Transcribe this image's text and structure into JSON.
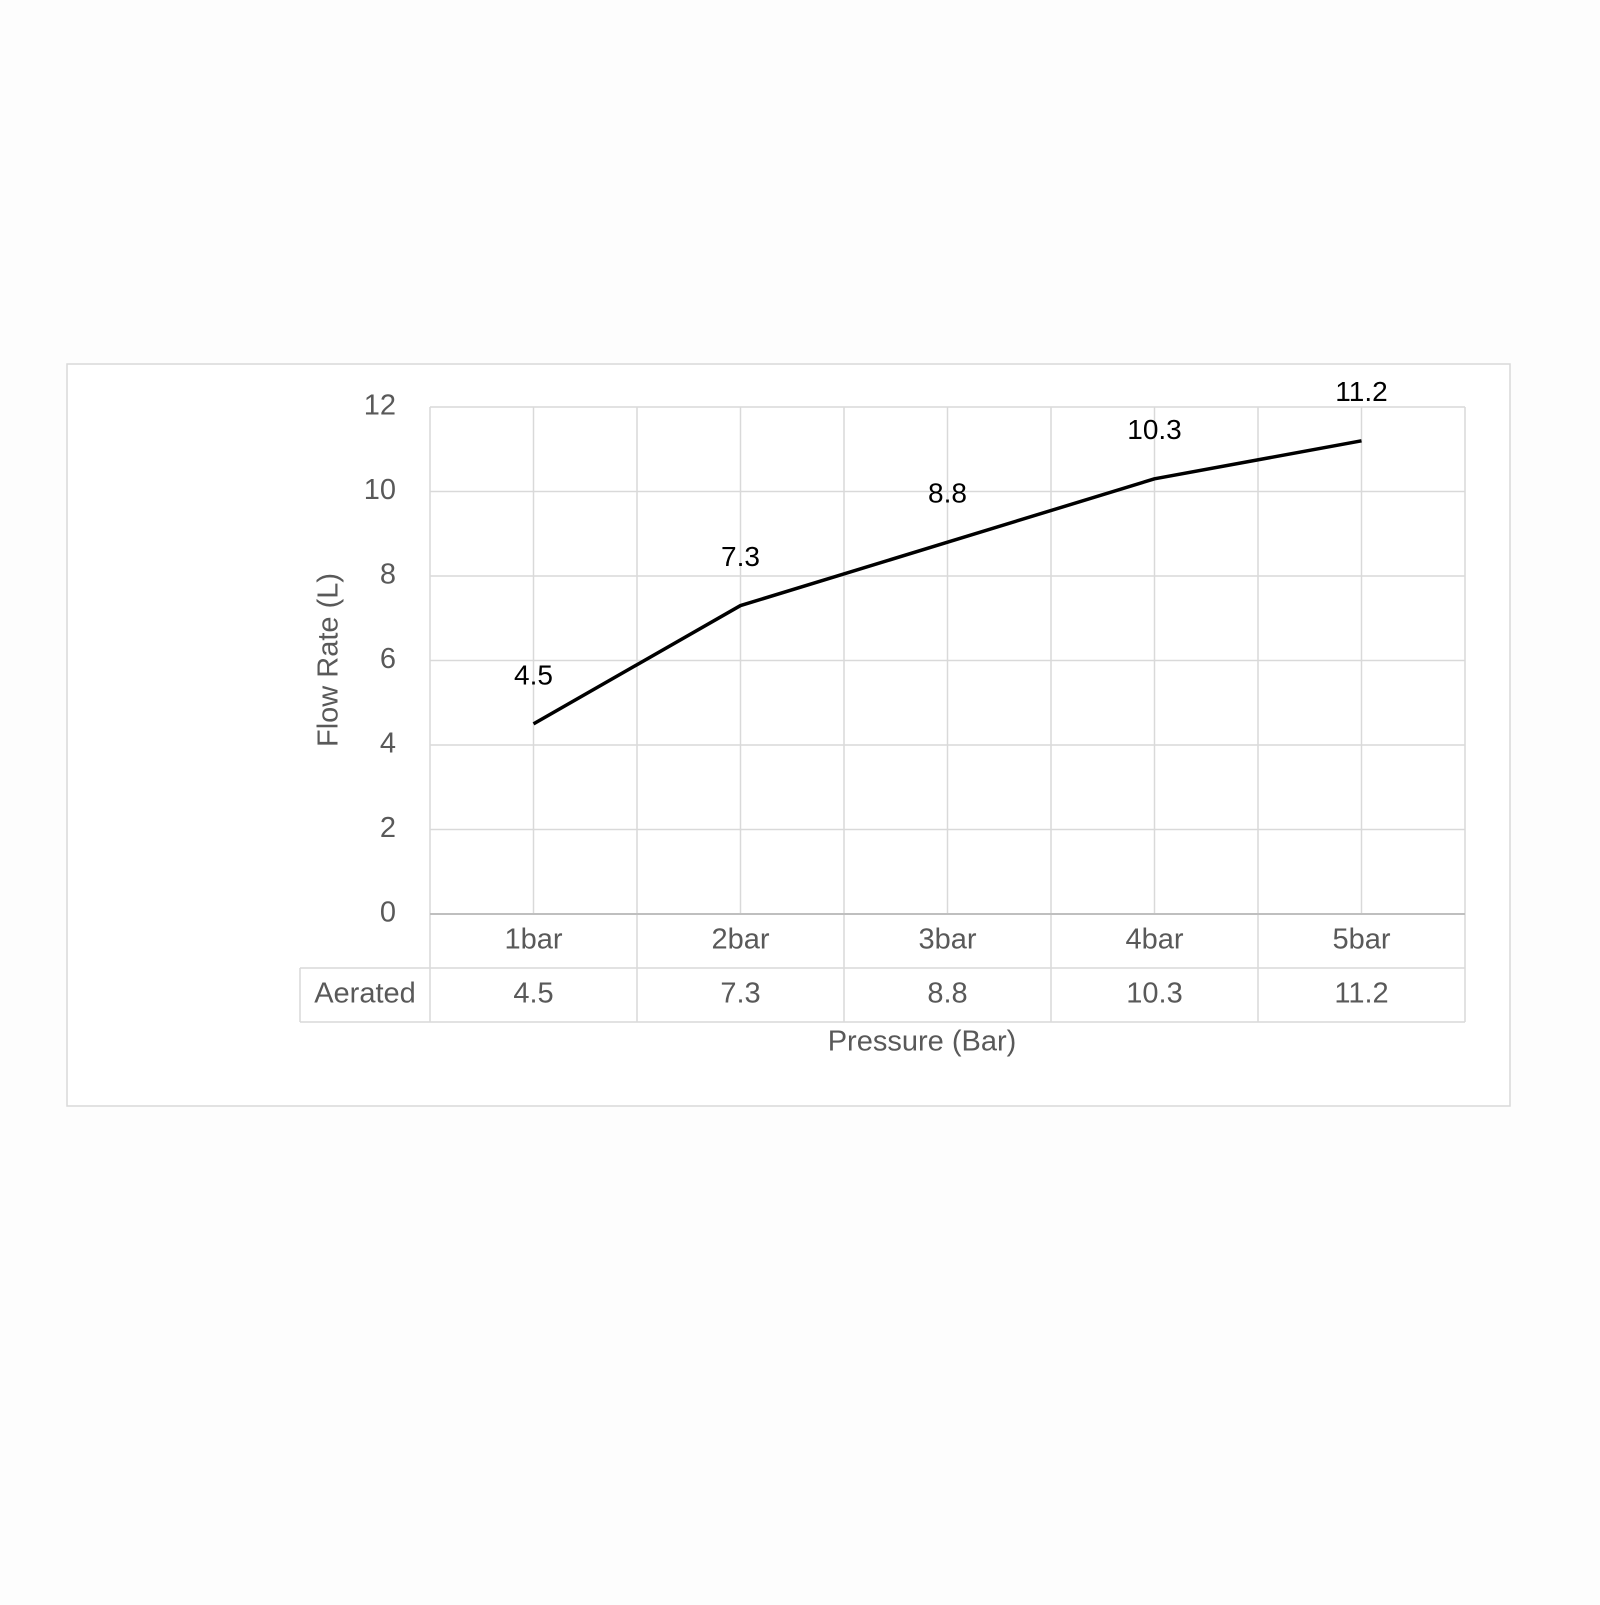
{
  "chart_data": {
    "type": "line",
    "categories": [
      "1bar",
      "2bar",
      "3bar",
      "4bar",
      "5bar"
    ],
    "series": [
      {
        "name": "Aerated",
        "color": "#000000",
        "values": [
          4.5,
          7.3,
          8.8,
          10.3,
          11.2
        ]
      }
    ],
    "ylim": [
      0,
      12
    ],
    "yticks": [
      0,
      2,
      4,
      6,
      8,
      10,
      12
    ],
    "grid": true,
    "data_labels": true,
    "data_table": true,
    "x_label": "Pressure (Bar)",
    "y_label": "Flow Rate (L)"
  }
}
